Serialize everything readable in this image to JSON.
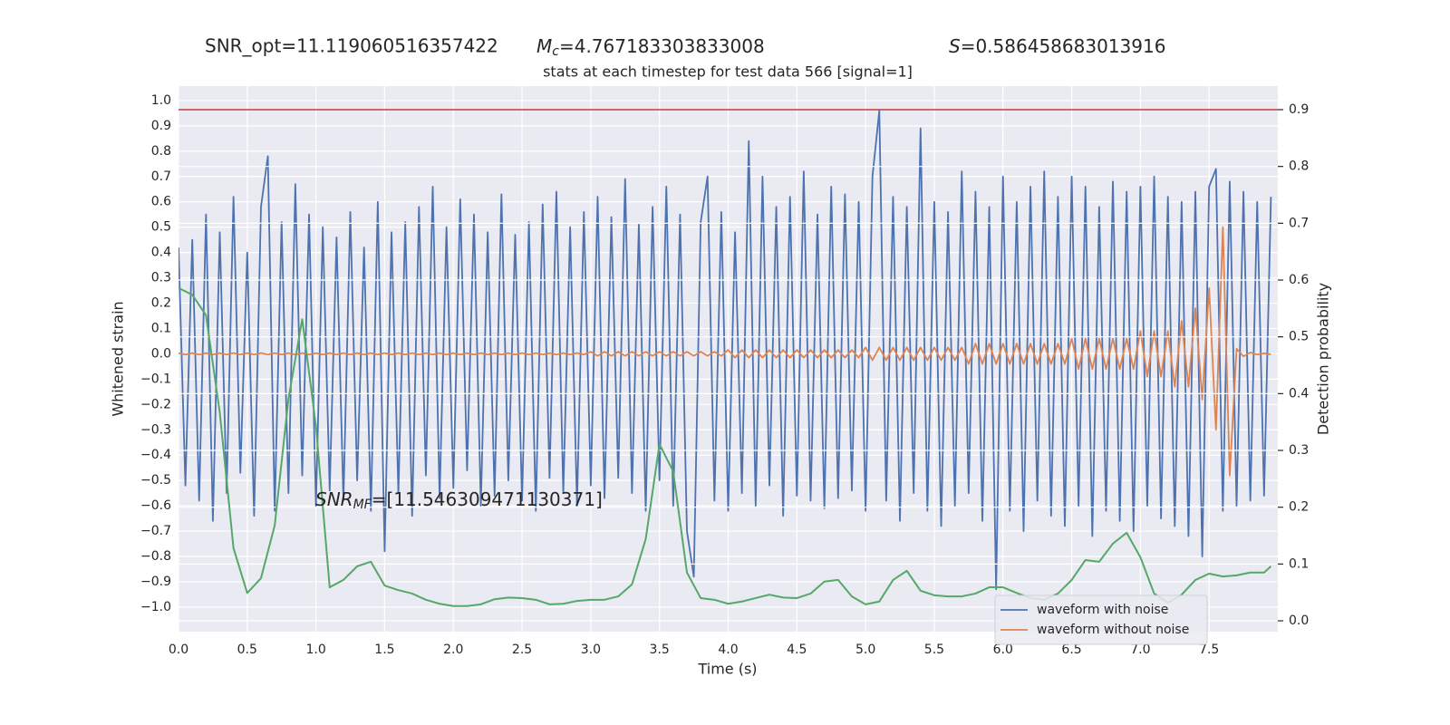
{
  "chart_data": {
    "type": "line",
    "title": "stats at each timestep for test data 566 [signal=1]",
    "annotations": [
      {
        "text": "SNR_opt=11.119060516357422"
      },
      {
        "symbol": "M",
        "subscript": "c",
        "text": "=4.767183303833008"
      },
      {
        "symbol": "S",
        "text": "=0.586458683013916"
      },
      {
        "symbol": "SNR",
        "subscript": "MF",
        "text": "=[11.546309471130371]"
      }
    ],
    "xlabel": "Time (s)",
    "ylabel": "Whitened strain",
    "y2label": "Detection probability",
    "xlim": [
      0,
      8
    ],
    "ylim": [
      -1.097,
      1.057
    ],
    "y2lim": [
      -0.0191,
      0.9415
    ],
    "xticks": [
      {
        "value": 0,
        "label": "0.0"
      },
      0.5,
      {
        "value": 1,
        "label": "1.0"
      },
      1.5,
      {
        "value": 2,
        "label": "2.0"
      },
      2.5,
      {
        "value": 3,
        "label": "3.0"
      },
      3.5,
      {
        "value": 4,
        "label": "4.0"
      },
      4.5,
      {
        "value": 5,
        "label": "5.0"
      },
      5.5,
      {
        "value": 6,
        "label": "6.0"
      },
      6.5,
      {
        "value": 7,
        "label": "7.0"
      },
      7.5
    ],
    "yticks": [
      {
        "value": -1,
        "label": "−1.0"
      },
      {
        "value": -0.9,
        "label": "−0.9"
      },
      {
        "value": -0.8,
        "label": "−0.8"
      },
      {
        "value": -0.7,
        "label": "−0.7"
      },
      {
        "value": -0.6,
        "label": "−0.6"
      },
      {
        "value": -0.5,
        "label": "−0.5"
      },
      {
        "value": -0.4,
        "label": "−0.4"
      },
      {
        "value": -0.3,
        "label": "−0.3"
      },
      {
        "value": -0.2,
        "label": "−0.2"
      },
      {
        "value": -0.1,
        "label": "−0.1"
      },
      {
        "value": 0,
        "label": "0.0"
      },
      0.1,
      0.2,
      0.3,
      0.4,
      0.5,
      0.6,
      0.7,
      0.8,
      0.9,
      {
        "value": 1,
        "label": "1.0"
      }
    ],
    "y2ticks": [
      {
        "value": 0,
        "label": "0.0"
      },
      0.1,
      0.2,
      0.3,
      0.4,
      0.5,
      0.6,
      0.7,
      0.8,
      0.9
    ],
    "grid": true,
    "legend": "lower right",
    "threshold": {
      "value": 0.9,
      "axis": "y2",
      "color": "#c0393b"
    },
    "series": [
      {
        "name": "waveform with noise",
        "color": "#4c72b0",
        "x": [
          0,
          0.05,
          0.1,
          0.15,
          0.2,
          0.25,
          0.3,
          0.35,
          0.4,
          0.45,
          0.5,
          0.55,
          0.6,
          0.65,
          0.7,
          0.75,
          0.8,
          0.85,
          0.9,
          0.95,
          1,
          1.05,
          1.1,
          1.15,
          1.2,
          1.25,
          1.3,
          1.35,
          1.4,
          1.45,
          1.5,
          1.55,
          1.6,
          1.65,
          1.7,
          1.75,
          1.8,
          1.85,
          1.9,
          1.95,
          2,
          2.05,
          2.1,
          2.15,
          2.2,
          2.25,
          2.3,
          2.35,
          2.4,
          2.45,
          2.5,
          2.55,
          2.6,
          2.65,
          2.7,
          2.75,
          2.8,
          2.85,
          2.9,
          2.95,
          3,
          3.05,
          3.1,
          3.15,
          3.2,
          3.25,
          3.3,
          3.35,
          3.4,
          3.45,
          3.5,
          3.55,
          3.6,
          3.65,
          3.7,
          3.75,
          3.8,
          3.85,
          3.9,
          3.95,
          4,
          4.05,
          4.1,
          4.15,
          4.2,
          4.25,
          4.3,
          4.35,
          4.4,
          4.45,
          4.5,
          4.55,
          4.6,
          4.65,
          4.7,
          4.75,
          4.8,
          4.85,
          4.9,
          4.95,
          5,
          5.05,
          5.1,
          5.15,
          5.2,
          5.25,
          5.3,
          5.35,
          5.4,
          5.45,
          5.5,
          5.55,
          5.6,
          5.65,
          5.7,
          5.75,
          5.8,
          5.85,
          5.9,
          5.95,
          6,
          6.05,
          6.1,
          6.15,
          6.2,
          6.25,
          6.3,
          6.35,
          6.4,
          6.45,
          6.5,
          6.55,
          6.6,
          6.65,
          6.7,
          6.75,
          6.8,
          6.85,
          6.9,
          6.95,
          7,
          7.05,
          7.1,
          7.15,
          7.2,
          7.25,
          7.3,
          7.35,
          7.4,
          7.45,
          7.5,
          7.55,
          7.6,
          7.65,
          7.7,
          7.75,
          7.8,
          7.85,
          7.9,
          7.95
        ],
        "values": [
          0.42,
          -0.52,
          0.45,
          -0.58,
          0.55,
          -0.66,
          0.48,
          -0.55,
          0.62,
          -0.47,
          0.4,
          -0.64,
          0.58,
          0.78,
          -0.62,
          0.52,
          -0.55,
          0.67,
          -0.48,
          0.55,
          -0.6,
          0.5,
          -0.54,
          0.46,
          -0.58,
          0.56,
          -0.5,
          0.42,
          -0.62,
          0.6,
          -0.78,
          0.48,
          -0.55,
          0.52,
          -0.64,
          0.58,
          -0.48,
          0.66,
          -0.57,
          0.5,
          -0.53,
          0.61,
          -0.46,
          0.55,
          -0.6,
          0.48,
          -0.56,
          0.63,
          -0.5,
          0.47,
          -0.58,
          0.52,
          -0.62,
          0.59,
          -0.49,
          0.64,
          -0.55,
          0.5,
          -0.6,
          0.56,
          -0.52,
          0.62,
          -0.57,
          0.54,
          -0.49,
          0.69,
          -0.55,
          0.51,
          -0.62,
          0.58,
          -0.5,
          0.66,
          -0.6,
          0.55,
          -0.7,
          -0.88,
          0.52,
          0.7,
          -0.58,
          0.56,
          -0.62,
          0.48,
          -0.55,
          0.84,
          -0.6,
          0.7,
          -0.52,
          0.58,
          -0.64,
          0.62,
          -0.56,
          0.72,
          -0.58,
          0.55,
          -0.61,
          0.66,
          -0.57,
          0.63,
          -0.54,
          0.6,
          -0.62,
          0.7,
          0.96,
          -0.58,
          0.62,
          -0.66,
          0.58,
          -0.55,
          0.89,
          -0.62,
          0.6,
          -0.68,
          0.56,
          -0.6,
          0.72,
          -0.55,
          0.64,
          -0.66,
          0.58,
          -0.93,
          0.7,
          -0.62,
          0.6,
          -0.7,
          0.66,
          -0.58,
          0.72,
          -0.64,
          0.62,
          -0.68,
          0.7,
          -0.6,
          0.66,
          -0.72,
          0.58,
          -0.62,
          0.68,
          -0.66,
          0.64,
          -0.7,
          0.66,
          -0.6,
          0.7,
          -0.65,
          0.62,
          -0.68,
          0.6,
          -0.72,
          0.64,
          -0.8,
          0.66,
          0.73,
          -0.62,
          0.68,
          -0.6,
          0.64,
          -0.58,
          0.6,
          -0.56,
          0.62
        ]
      },
      {
        "name": "waveform without noise",
        "color": "#dd8452",
        "x": [
          0,
          0.05,
          0.1,
          0.15,
          0.2,
          0.25,
          0.3,
          0.35,
          0.4,
          0.45,
          0.5,
          0.55,
          0.6,
          0.65,
          0.7,
          0.75,
          0.8,
          0.85,
          0.9,
          0.95,
          1,
          1.05,
          1.1,
          1.15,
          1.2,
          1.25,
          1.3,
          1.35,
          1.4,
          1.45,
          1.5,
          1.55,
          1.6,
          1.65,
          1.7,
          1.75,
          1.8,
          1.85,
          1.9,
          1.95,
          2,
          2.05,
          2.1,
          2.15,
          2.2,
          2.25,
          2.3,
          2.35,
          2.4,
          2.45,
          2.5,
          2.55,
          2.6,
          2.65,
          2.7,
          2.75,
          2.8,
          2.85,
          2.9,
          2.95,
          3,
          3.05,
          3.1,
          3.15,
          3.2,
          3.25,
          3.3,
          3.35,
          3.4,
          3.45,
          3.5,
          3.55,
          3.6,
          3.65,
          3.7,
          3.75,
          3.8,
          3.85,
          3.9,
          3.95,
          4,
          4.05,
          4.1,
          4.15,
          4.2,
          4.25,
          4.3,
          4.35,
          4.4,
          4.45,
          4.5,
          4.55,
          4.6,
          4.65,
          4.7,
          4.75,
          4.8,
          4.85,
          4.9,
          4.95,
          5,
          5.05,
          5.1,
          5.15,
          5.2,
          5.25,
          5.3,
          5.35,
          5.4,
          5.45,
          5.5,
          5.55,
          5.6,
          5.65,
          5.7,
          5.75,
          5.8,
          5.85,
          5.9,
          5.95,
          6,
          6.05,
          6.1,
          6.15,
          6.2,
          6.25,
          6.3,
          6.35,
          6.4,
          6.45,
          6.5,
          6.55,
          6.6,
          6.65,
          6.7,
          6.75,
          6.8,
          6.85,
          6.9,
          6.95,
          7,
          7.05,
          7.1,
          7.15,
          7.2,
          7.25,
          7.3,
          7.35,
          7.4,
          7.45,
          7.5,
          7.55,
          7.6,
          7.65,
          7.7,
          7.75,
          7.8,
          7.85,
          7.9,
          7.95
        ],
        "values": [
          0.003,
          -0.003,
          0.003,
          -0.003,
          0.003,
          -0.003,
          0.003,
          -0.003,
          0.003,
          -0.003,
          0.003,
          -0.003,
          0.003,
          -0.003,
          0.003,
          -0.003,
          0.003,
          -0.003,
          0.003,
          -0.003,
          0.003,
          -0.003,
          0.003,
          -0.003,
          0.003,
          -0.003,
          0.003,
          -0.003,
          0.003,
          -0.003,
          0.003,
          -0.003,
          0.003,
          -0.003,
          0.003,
          -0.003,
          0.003,
          -0.003,
          0.003,
          -0.003,
          0.003,
          -0.003,
          0.003,
          -0.003,
          0.003,
          -0.003,
          0.003,
          -0.003,
          0.003,
          -0.003,
          0.003,
          -0.003,
          0.003,
          -0.003,
          0.003,
          -0.003,
          0.003,
          -0.003,
          0.003,
          -0.003,
          0.008,
          -0.008,
          0.008,
          -0.008,
          0.008,
          -0.008,
          0.008,
          -0.008,
          0.008,
          -0.008,
          0.008,
          -0.008,
          0.008,
          -0.008,
          0.008,
          -0.008,
          0.008,
          -0.008,
          0.008,
          -0.008,
          0.015,
          -0.015,
          0.015,
          -0.015,
          0.015,
          -0.015,
          0.015,
          -0.015,
          0.015,
          -0.015,
          0.015,
          -0.015,
          0.015,
          -0.015,
          0.015,
          -0.015,
          0.015,
          -0.015,
          0.015,
          -0.015,
          0.025,
          -0.025,
          0.025,
          -0.025,
          0.025,
          -0.025,
          0.025,
          -0.025,
          0.025,
          -0.025,
          0.025,
          -0.025,
          0.025,
          -0.025,
          0.025,
          -0.04,
          0.04,
          -0.04,
          0.04,
          -0.04,
          0.04,
          -0.04,
          0.04,
          -0.04,
          0.04,
          -0.04,
          0.04,
          -0.04,
          0.04,
          -0.04,
          0.06,
          -0.06,
          0.06,
          -0.06,
          0.06,
          -0.06,
          0.06,
          -0.06,
          0.06,
          -0.06,
          0.09,
          -0.09,
          0.09,
          -0.09,
          0.09,
          -0.13,
          0.13,
          -0.13,
          0.18,
          -0.18,
          0.26,
          -0.3,
          0.5,
          -0.48,
          0.02,
          -0.01,
          0.005,
          -0.003,
          0.002,
          -0.002
        ]
      },
      {
        "color": "#55a868",
        "axis": "y2",
        "x": [
          0,
          0.1,
          0.2,
          0.3,
          0.4,
          0.5,
          0.6,
          0.7,
          0.8,
          0.9,
          1,
          1.1,
          1.2,
          1.3,
          1.4,
          1.5,
          1.6,
          1.7,
          1.8,
          1.9,
          2,
          2.1,
          2.2,
          2.3,
          2.4,
          2.5,
          2.6,
          2.7,
          2.8,
          2.9,
          3,
          3.1,
          3.2,
          3.3,
          3.4,
          3.5,
          3.6,
          3.7,
          3.8,
          3.9,
          4,
          4.1,
          4.2,
          4.3,
          4.4,
          4.5,
          4.6,
          4.7,
          4.8,
          4.9,
          5,
          5.1,
          5.2,
          5.3,
          5.4,
          5.5,
          5.6,
          5.7,
          5.8,
          5.9,
          6,
          6.1,
          6.2,
          6.3,
          6.4,
          6.5,
          6.6,
          6.7,
          6.8,
          6.9,
          7,
          7.1,
          7.2,
          7.3,
          7.4,
          7.5,
          7.6,
          7.7,
          7.8,
          7.9,
          7.95
        ],
        "values": [
          0.586,
          0.574,
          0.538,
          0.367,
          0.128,
          0.049,
          0.075,
          0.168,
          0.391,
          0.531,
          0.343,
          0.059,
          0.072,
          0.096,
          0.104,
          0.062,
          0.054,
          0.048,
          0.037,
          0.03,
          0.026,
          0.026,
          0.029,
          0.038,
          0.041,
          0.04,
          0.037,
          0.029,
          0.03,
          0.035,
          0.037,
          0.037,
          0.043,
          0.064,
          0.144,
          0.311,
          0.263,
          0.085,
          0.04,
          0.037,
          0.03,
          0.034,
          0.04,
          0.046,
          0.041,
          0.04,
          0.048,
          0.069,
          0.072,
          0.043,
          0.029,
          0.034,
          0.072,
          0.088,
          0.053,
          0.045,
          0.043,
          0.043,
          0.048,
          0.059,
          0.059,
          0.049,
          0.04,
          0.037,
          0.048,
          0.072,
          0.107,
          0.104,
          0.136,
          0.155,
          0.112,
          0.048,
          0.032,
          0.046,
          0.072,
          0.083,
          0.078,
          0.08,
          0.085,
          0.085,
          0.096
        ]
      }
    ]
  }
}
